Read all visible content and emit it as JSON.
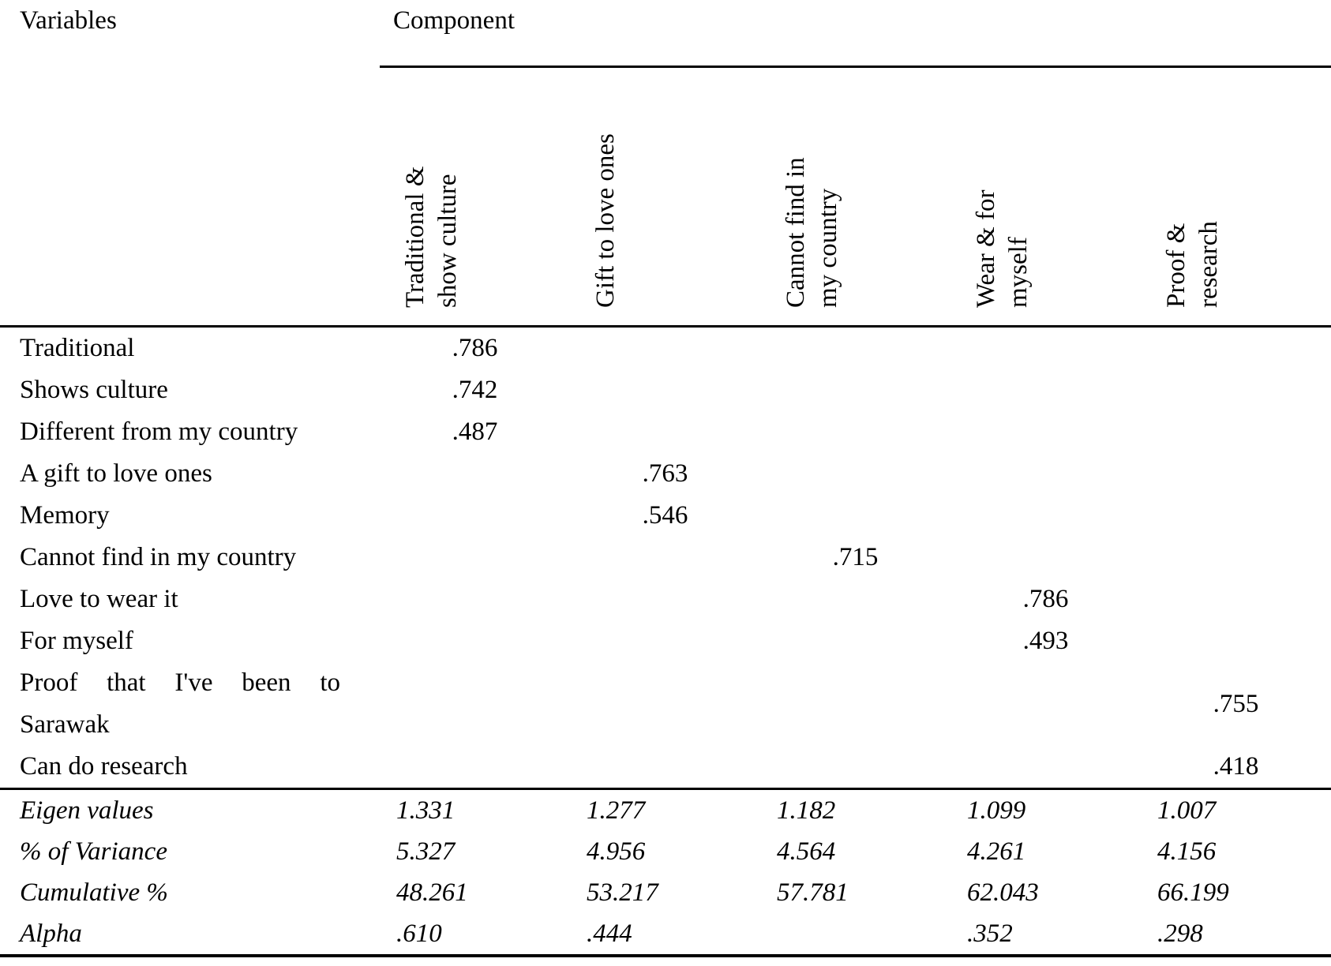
{
  "header": {
    "variables_label": "Variables",
    "component_label": "Component"
  },
  "components": [
    {
      "label": "Traditional &\nshow culture"
    },
    {
      "label": "Gift to love ones"
    },
    {
      "label": "Cannot find in\nmy country"
    },
    {
      "label": "Wear & for\nmyself"
    },
    {
      "label": "Proof & research"
    }
  ],
  "rows": [
    {
      "label": "Traditional",
      "values": [
        ".786",
        "",
        "",
        "",
        ""
      ]
    },
    {
      "label": "Shows culture",
      "values": [
        ".742",
        "",
        "",
        "",
        ""
      ]
    },
    {
      "label": "Different from my country",
      "values": [
        ".487",
        "",
        "",
        "",
        ""
      ]
    },
    {
      "label": "A gift to love ones",
      "values": [
        "",
        ".763",
        "",
        "",
        ""
      ]
    },
    {
      "label": "Memory",
      "values": [
        "",
        ".546",
        "",
        "",
        ""
      ]
    },
    {
      "label": "Cannot find in my country",
      "values": [
        "",
        "",
        ".715",
        "",
        ""
      ]
    },
    {
      "label": "Love to wear it",
      "values": [
        "",
        "",
        "",
        ".786",
        ""
      ]
    },
    {
      "label": "For myself",
      "values": [
        "",
        "",
        "",
        ".493",
        ""
      ]
    },
    {
      "label": "Proof that I've been to Sarawak",
      "values": [
        "",
        "",
        "",
        "",
        ".755"
      ]
    },
    {
      "label": "Can do research",
      "values": [
        "",
        "",
        "",
        "",
        ".418"
      ]
    }
  ],
  "footer": [
    {
      "label": "Eigen values",
      "values": [
        "1.331",
        "1.277",
        "1.182",
        "1.099",
        "1.007"
      ]
    },
    {
      "label": "% of Variance",
      "values": [
        "5.327",
        "4.956",
        "4.564",
        "4.261",
        "4.156"
      ]
    },
    {
      "label": "Cumulative %",
      "values": [
        "48.261",
        "53.217",
        "57.781",
        "62.043",
        "66.199"
      ]
    },
    {
      "label": "Alpha",
      "values": [
        ".610",
        ".444",
        "",
        ".352",
        ".298"
      ]
    }
  ]
}
